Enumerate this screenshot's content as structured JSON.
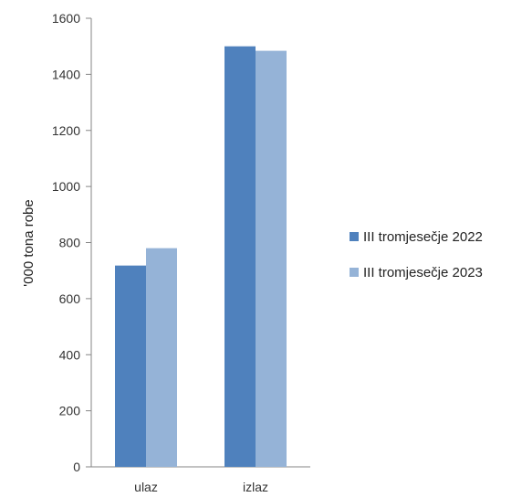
{
  "chart_data": {
    "type": "bar",
    "categories": [
      "ulaz",
      "izlaz"
    ],
    "series": [
      {
        "name": "III tromjesečje 2022",
        "values": [
          718,
          1500
        ],
        "color": "#4f81bd"
      },
      {
        "name": "III tromjesečje 2023",
        "values": [
          780,
          1484
        ],
        "color": "#95b3d7"
      }
    ],
    "ylabel": "'000 tona robe",
    "xlabel": "",
    "ylim": [
      0,
      1600
    ],
    "yticks": [
      "0",
      "200",
      "400",
      "600",
      "800",
      "1000",
      "1200",
      "1400",
      "1600"
    ],
    "grid": false,
    "legend": "right"
  }
}
